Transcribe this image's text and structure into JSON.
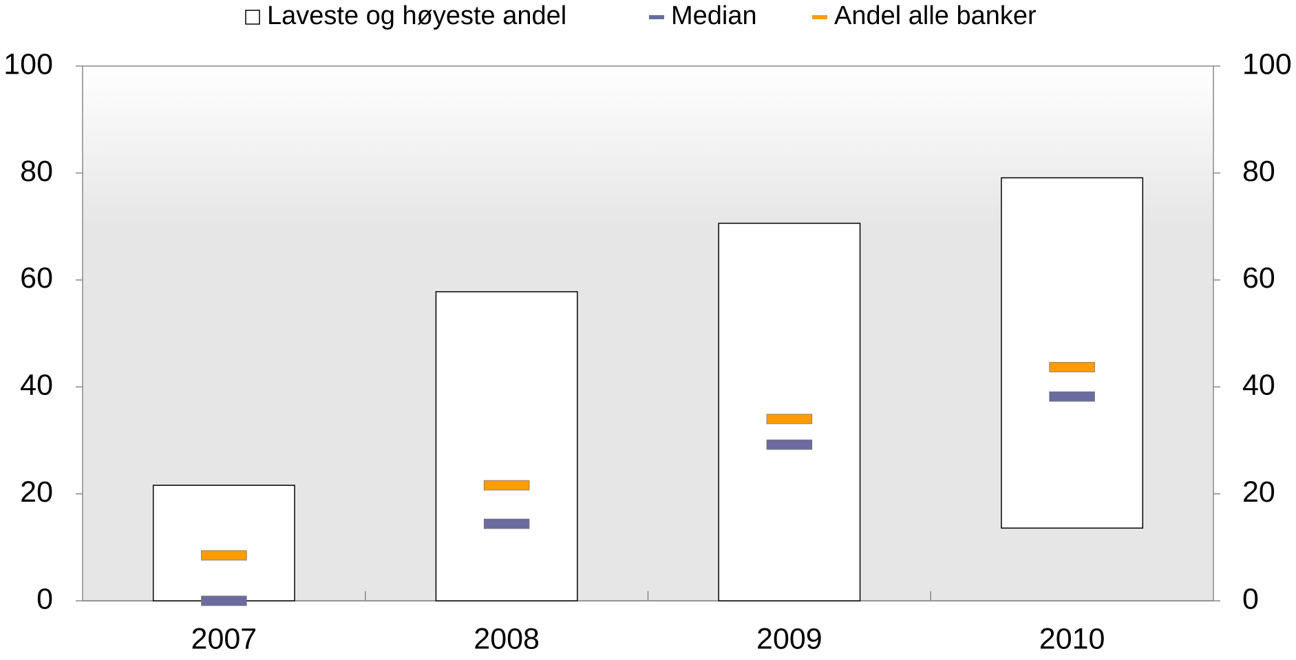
{
  "chart_data": {
    "type": "bar",
    "categories": [
      "2007",
      "2008",
      "2009",
      "2010"
    ],
    "series": [
      {
        "name": "Laveste og høyeste andel",
        "color": "#ffffff",
        "low": [
          0,
          0,
          0,
          13.6
        ],
        "high": [
          21.6,
          57.8,
          70.6,
          79.1
        ]
      },
      {
        "name": "Median",
        "color": "#6b6b9f",
        "values": [
          0,
          14.4,
          29.2,
          38.2
        ]
      },
      {
        "name": "Andel alle banker",
        "color": "#ff9c00",
        "values": [
          8.5,
          21.6,
          34,
          43.7
        ]
      }
    ],
    "ylim": [
      0,
      100
    ],
    "yticks": [
      0,
      20,
      40,
      60,
      80,
      100
    ],
    "y2lim": [
      0,
      100
    ],
    "y2ticks": [
      0,
      20,
      40,
      60,
      80,
      100
    ],
    "legend": "top"
  }
}
